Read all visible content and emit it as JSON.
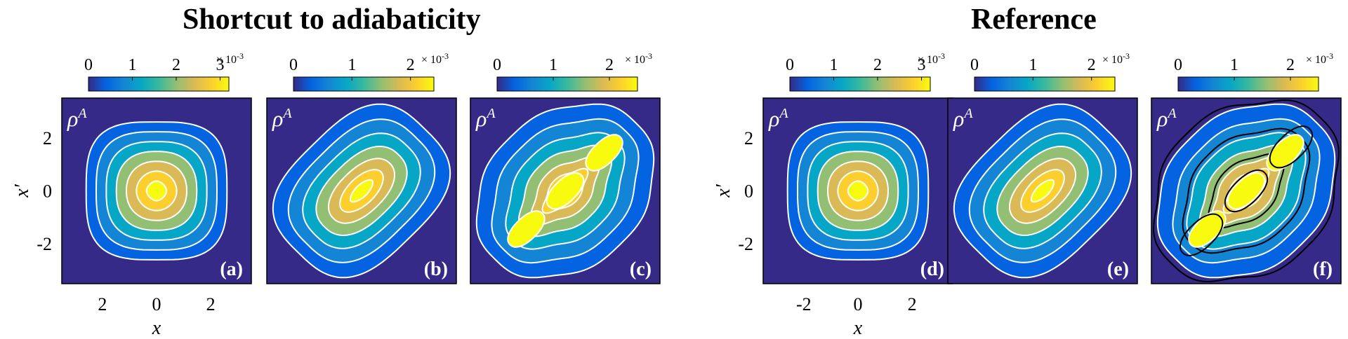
{
  "titles": {
    "left": "Shortcut to adiabaticity",
    "right": "Reference"
  },
  "axes": {
    "xlabel": "x",
    "ylabel": "x′",
    "x_ticks_left": [
      "2",
      "0",
      "2"
    ],
    "x_ticks_right": [
      "-2",
      "0",
      "2"
    ],
    "y_ticks": [
      "2",
      "0",
      "-2"
    ]
  },
  "colormap": [
    "#352a87",
    "#0363e1",
    "#1485d4",
    "#06a7c6",
    "#38b99e",
    "#92bf73",
    "#d9ba56",
    "#fcce2e",
    "#f9fb0e"
  ],
  "contour_colors": {
    "white": "#ffffff",
    "black": "#000000"
  },
  "chart_data": [
    {
      "type": "heatmap",
      "panel": "(a)",
      "group": "Shortcut to adiabaticity",
      "quantity": "ρ^A",
      "colorbar": {
        "ticks": [
          "0",
          "1",
          "2",
          "3"
        ],
        "exponent": "× 10",
        "exponent_power": "-3",
        "range": [
          0,
          0.0032
        ]
      },
      "xlim": [
        -3.5,
        3.5
      ],
      "ylim": [
        -3.5,
        3.5
      ],
      "peak": 0.0032,
      "shape": "single-peak round",
      "contours": [
        "white"
      ]
    },
    {
      "type": "heatmap",
      "panel": "(b)",
      "group": "Shortcut to adiabaticity",
      "quantity": "ρ^A",
      "colorbar": {
        "ticks": [
          "0",
          "1",
          "2"
        ],
        "exponent": "× 10",
        "exponent_power": "-3",
        "range": [
          0,
          0.0024
        ]
      },
      "xlim": [
        -3.5,
        3.5
      ],
      "ylim": [
        -3.5,
        3.5
      ],
      "peak": 0.0023,
      "shape": "elongated along diagonal",
      "contours": [
        "white"
      ]
    },
    {
      "type": "heatmap",
      "panel": "(c)",
      "group": "Shortcut to adiabaticity",
      "quantity": "ρ^A",
      "colorbar": {
        "ticks": [
          "0",
          "1",
          "2"
        ],
        "exponent": "× 10",
        "exponent_power": "-3",
        "range": [
          0,
          0.0025
        ]
      },
      "xlim": [
        -3.5,
        3.5
      ],
      "ylim": [
        -3.5,
        3.5
      ],
      "peak": 0.0024,
      "shape": "three peaks along diagonal",
      "contours": [
        "white"
      ]
    },
    {
      "type": "heatmap",
      "panel": "(d)",
      "group": "Reference",
      "quantity": "ρ^A",
      "colorbar": {
        "ticks": [
          "0",
          "1",
          "2",
          "3"
        ],
        "exponent": "× 10",
        "exponent_power": "-3",
        "range": [
          0,
          0.0032
        ]
      },
      "xlim": [
        -3.5,
        3.5
      ],
      "ylim": [
        -3.5,
        3.5
      ],
      "peak": 0.0032,
      "shape": "single-peak round",
      "contours": [
        "white"
      ]
    },
    {
      "type": "heatmap",
      "panel": "(e)",
      "group": "Reference",
      "quantity": "ρ^A",
      "colorbar": {
        "ticks": [
          "0",
          "1",
          "2"
        ],
        "exponent": "× 10",
        "exponent_power": "-3",
        "range": [
          0,
          0.0024
        ]
      },
      "xlim": [
        -3.5,
        3.5
      ],
      "ylim": [
        -3.5,
        3.5
      ],
      "peak": 0.0023,
      "shape": "elongated along diagonal",
      "contours": [
        "white"
      ]
    },
    {
      "type": "heatmap",
      "panel": "(f)",
      "group": "Reference",
      "quantity": "ρ^A",
      "colorbar": {
        "ticks": [
          "0",
          "1",
          "2"
        ],
        "exponent": "× 10",
        "exponent_power": "-3",
        "range": [
          0,
          0.0025
        ]
      },
      "xlim": [
        -3.5,
        3.5
      ],
      "ylim": [
        -3.5,
        3.5
      ],
      "peak": 0.0024,
      "shape": "three peaks along diagonal",
      "contours": [
        "white",
        "black"
      ]
    }
  ]
}
